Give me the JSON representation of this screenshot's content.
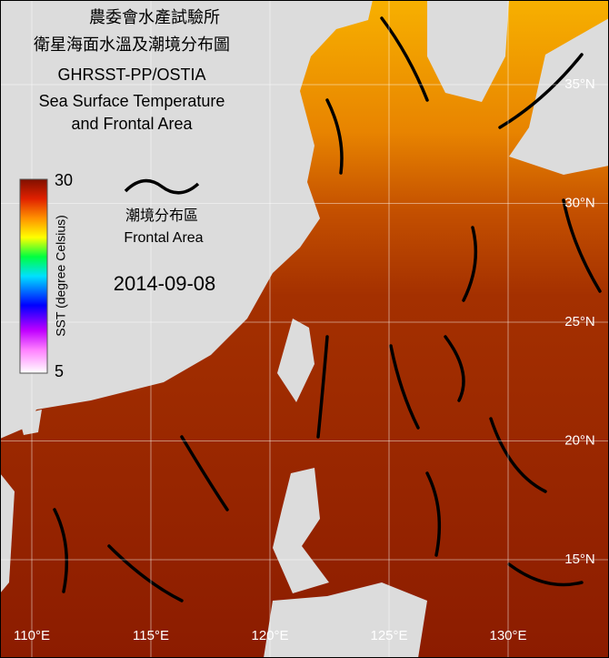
{
  "title": {
    "org": "農委會水產試驗所",
    "name_zh": "衛星海面水溫及潮境分布圖",
    "product": "GHRSST-PP/OSTIA",
    "name_en_1": "Sea Surface Temperature",
    "name_en_2": "and Frontal Area"
  },
  "colorbar": {
    "max": 30,
    "min": 5,
    "label": "SST (degree Celsius)"
  },
  "legend": {
    "label_zh": "潮境分布區",
    "label_en": "Frontal Area"
  },
  "date": "2014-09-08",
  "map": {
    "lon_ticks": [
      {
        "value": 110,
        "label": "110°E"
      },
      {
        "value": 115,
        "label": "115°E"
      },
      {
        "value": 120,
        "label": "120°E"
      },
      {
        "value": 125,
        "label": "125°E"
      },
      {
        "value": 130,
        "label": "130°E"
      }
    ],
    "lat_ticks": [
      {
        "value": 35,
        "label": "35°N"
      },
      {
        "value": 30,
        "label": "30°N"
      },
      {
        "value": 25,
        "label": "25°N"
      },
      {
        "value": 20,
        "label": "20°N"
      },
      {
        "value": 15,
        "label": "15°N"
      }
    ]
  }
}
